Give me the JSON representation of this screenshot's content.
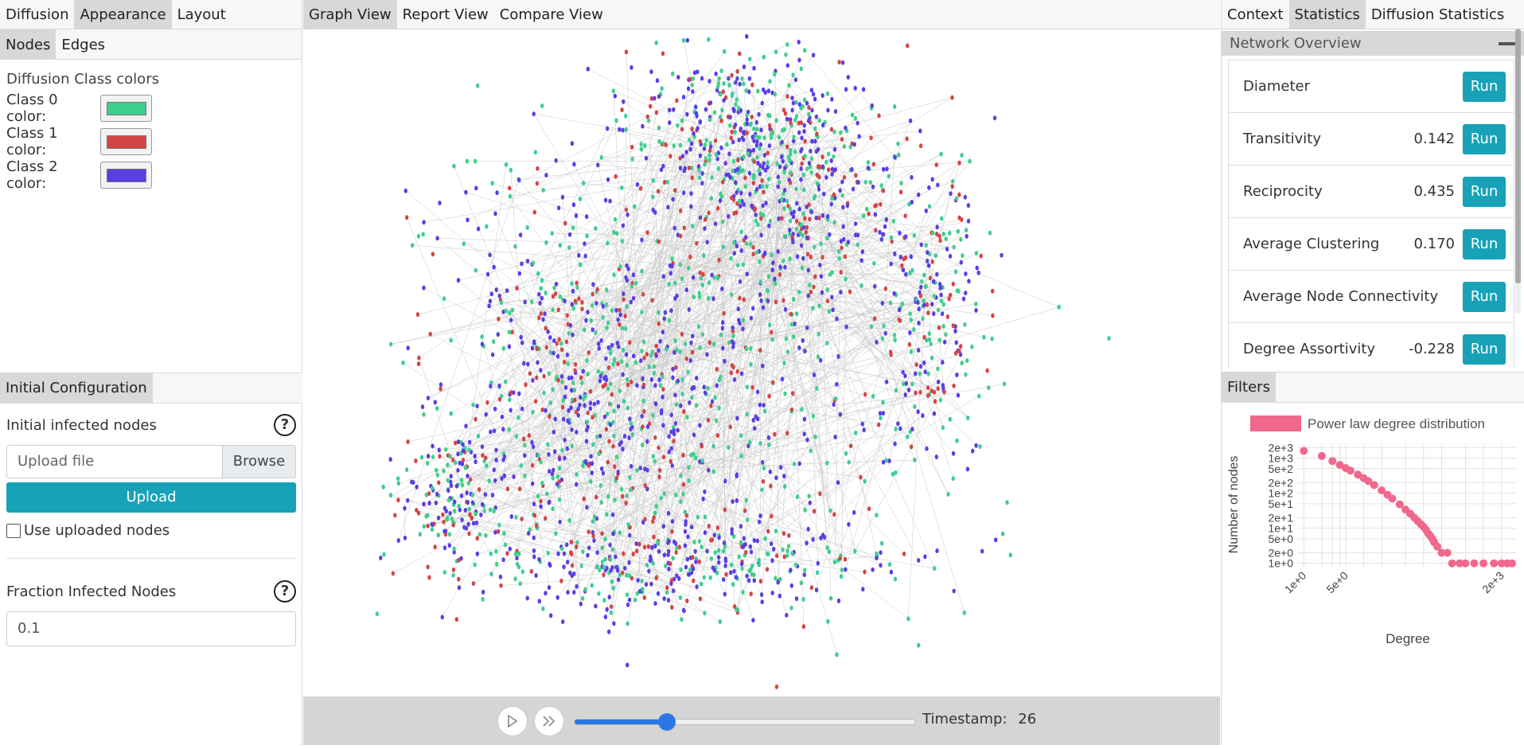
{
  "left_tabs": [
    "Diffusion",
    "Appearance",
    "Layout"
  ],
  "left_subtabs": [
    "Nodes",
    "Edges"
  ],
  "appearance": {
    "section_title": "Diffusion Class colors",
    "classes": [
      {
        "label": "Class 0 color:",
        "color": "#3ecf8e"
      },
      {
        "label": "Class 1 color:",
        "color": "#d64545"
      },
      {
        "label": "Class 2 color:",
        "color": "#5b3ee6"
      }
    ]
  },
  "init_config": {
    "tab": "Initial Configuration",
    "infected_label": "Initial infected nodes",
    "help_glyph": "?",
    "upload_placeholder": "Upload file",
    "browse_label": "Browse",
    "upload_button": "Upload",
    "use_uploaded_label": "Use uploaded nodes",
    "fraction_label": "Fraction Infected Nodes",
    "fraction_value": "0.1"
  },
  "center_tabs": [
    "Graph View",
    "Report View",
    "Compare View"
  ],
  "player": {
    "play_icon": "play-icon",
    "fast_forward_icon": "fast-forward-icon",
    "slider_fraction": 0.27,
    "timestamp_label": "Timestamp:",
    "timestamp_value": "26"
  },
  "right_tabs": [
    "Context",
    "Statistics",
    "Diffusion Statistics"
  ],
  "overview": {
    "title": "Network Overview",
    "run_label": "Run",
    "stats": [
      {
        "name": "Diameter",
        "value": ""
      },
      {
        "name": "Transitivity",
        "value": "0.142"
      },
      {
        "name": "Reciprocity",
        "value": "0.435"
      },
      {
        "name": "Average Clustering",
        "value": "0.170"
      },
      {
        "name": "Average Node Connectivity",
        "value": ""
      },
      {
        "name": "Degree Assortivity",
        "value": "-0.228"
      }
    ]
  },
  "filters_tab": "Filters",
  "colors": {
    "accent": "#17a2b8",
    "slider": "#2b78e4",
    "class0": "#3ecf8e",
    "class1": "#d64545",
    "class2": "#5b3ee6",
    "edge": "#c8c8c8",
    "chart_point": "#f0688c"
  },
  "chart_data": {
    "type": "scatter",
    "legend": "Power law degree distribution",
    "xlabel": "Degree",
    "ylabel": "Number of nodes",
    "xscale": "log",
    "yscale": "log",
    "xlim": [
      0.8,
      3500
    ],
    "ylim": [
      0.8,
      2500
    ],
    "x_ticks": [
      "1e+0",
      "5e+0",
      "2e+3"
    ],
    "y_ticks": [
      "2e+3",
      "1e+3",
      "5e+2",
      "2e+2",
      "1e+2",
      "5e+1",
      "2e+1",
      "1e+1",
      "5e+0",
      "2e+0",
      "1e+0"
    ],
    "grid": true,
    "points": [
      [
        1,
        1600
      ],
      [
        2,
        1150
      ],
      [
        3,
        820
      ],
      [
        4,
        640
      ],
      [
        5,
        520
      ],
      [
        6,
        440
      ],
      [
        8,
        340
      ],
      [
        10,
        270
      ],
      [
        12,
        220
      ],
      [
        15,
        170
      ],
      [
        20,
        120
      ],
      [
        25,
        90
      ],
      [
        30,
        70
      ],
      [
        40,
        48
      ],
      [
        50,
        34
      ],
      [
        60,
        26
      ],
      [
        70,
        20
      ],
      [
        80,
        16
      ],
      [
        90,
        13
      ],
      [
        100,
        11
      ],
      [
        110,
        9
      ],
      [
        120,
        7
      ],
      [
        130,
        6
      ],
      [
        140,
        5
      ],
      [
        150,
        4
      ],
      [
        170,
        3
      ],
      [
        200,
        2
      ],
      [
        250,
        2
      ],
      [
        300,
        1
      ],
      [
        400,
        1
      ],
      [
        500,
        1
      ],
      [
        700,
        1
      ],
      [
        1000,
        1
      ],
      [
        1500,
        1
      ],
      [
        2000,
        1
      ],
      [
        2500,
        1
      ],
      [
        3000,
        1
      ]
    ]
  }
}
